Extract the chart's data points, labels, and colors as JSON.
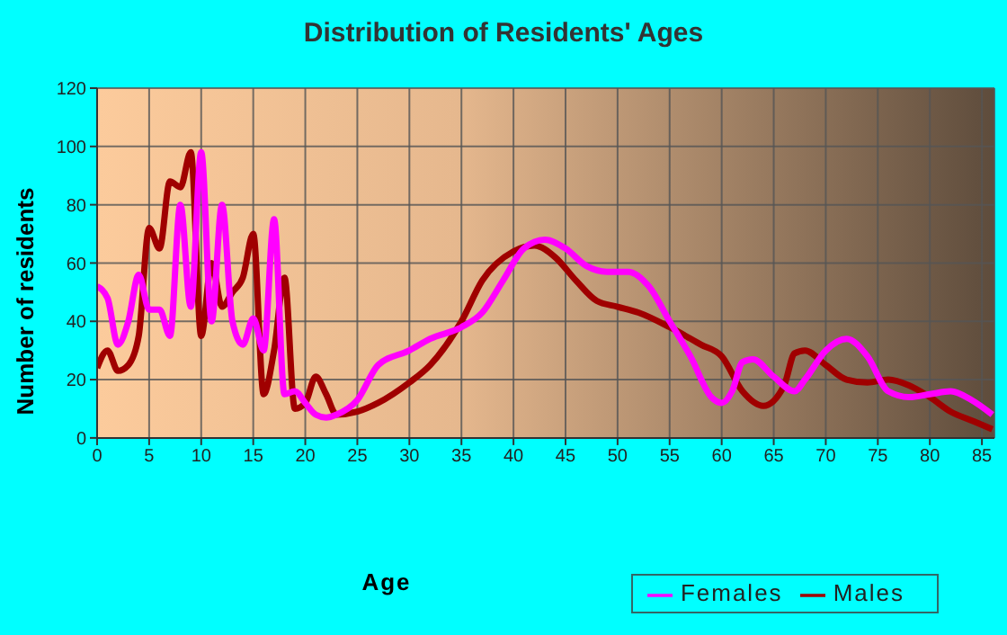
{
  "chart_data": {
    "type": "line",
    "title": "Distribution of Residents' Ages",
    "xlabel": "Age",
    "ylabel": "Number of residents",
    "xlim": [
      0,
      86.2
    ],
    "xticks": [
      0,
      5,
      10,
      15,
      20,
      25,
      30,
      35,
      40,
      45,
      50,
      55,
      60,
      65,
      70,
      75,
      80,
      85
    ],
    "ylim": [
      0,
      120
    ],
    "yticks": [
      0,
      20,
      40,
      60,
      80,
      100,
      120
    ],
    "grid": true,
    "legend": "bottom right",
    "marker": "none",
    "line_style": "solid",
    "series": [
      {
        "name": "Males",
        "color": "#a00000",
        "x": [
          0,
          1,
          2,
          3,
          4,
          5,
          6,
          7,
          8,
          9,
          10,
          11,
          12,
          13,
          14,
          15,
          16,
          17,
          18,
          19,
          20,
          21,
          22,
          23,
          25,
          27,
          30,
          32,
          35,
          37,
          40,
          42,
          44,
          46,
          48,
          50,
          52,
          55,
          58,
          60,
          62,
          64,
          66,
          67,
          68,
          70,
          72,
          74,
          76,
          78,
          80,
          82,
          84,
          86
        ],
        "values": [
          24,
          30,
          23,
          25,
          35,
          72,
          65,
          88,
          86,
          98,
          35,
          60,
          45,
          50,
          55,
          70,
          15,
          30,
          55,
          10,
          12,
          21,
          15,
          8,
          9,
          12,
          19,
          25,
          40,
          54,
          64,
          66,
          62,
          54,
          47,
          45,
          43,
          38,
          32,
          28,
          16,
          11,
          18,
          29,
          30,
          25,
          20,
          19,
          20,
          18,
          14,
          9,
          6,
          3
        ]
      },
      {
        "name": "Females",
        "color": "#ff00ff",
        "x": [
          0,
          1,
          2,
          3,
          4,
          5,
          6,
          7,
          8,
          9,
          10,
          11,
          12,
          13,
          14,
          15,
          16,
          17,
          18,
          19,
          20,
          21,
          22,
          23,
          25,
          27,
          30,
          32,
          35,
          37,
          39,
          41,
          43,
          45,
          47,
          49,
          51,
          53,
          55,
          57,
          59,
          60,
          61,
          62,
          63,
          65,
          67,
          68,
          70,
          72,
          74,
          76,
          78,
          80,
          82,
          84,
          86
        ],
        "values": [
          52,
          48,
          32,
          40,
          56,
          44,
          44,
          35,
          80,
          45,
          98,
          40,
          80,
          40,
          32,
          41,
          30,
          75,
          15,
          16,
          12,
          8,
          7,
          8,
          13,
          25,
          30,
          34,
          38,
          43,
          54,
          65,
          68,
          65,
          59,
          57,
          57,
          52,
          40,
          28,
          14,
          12,
          16,
          26,
          27,
          21,
          16,
          20,
          30,
          34,
          28,
          16,
          14,
          15,
          16,
          13,
          8
        ]
      }
    ]
  }
}
